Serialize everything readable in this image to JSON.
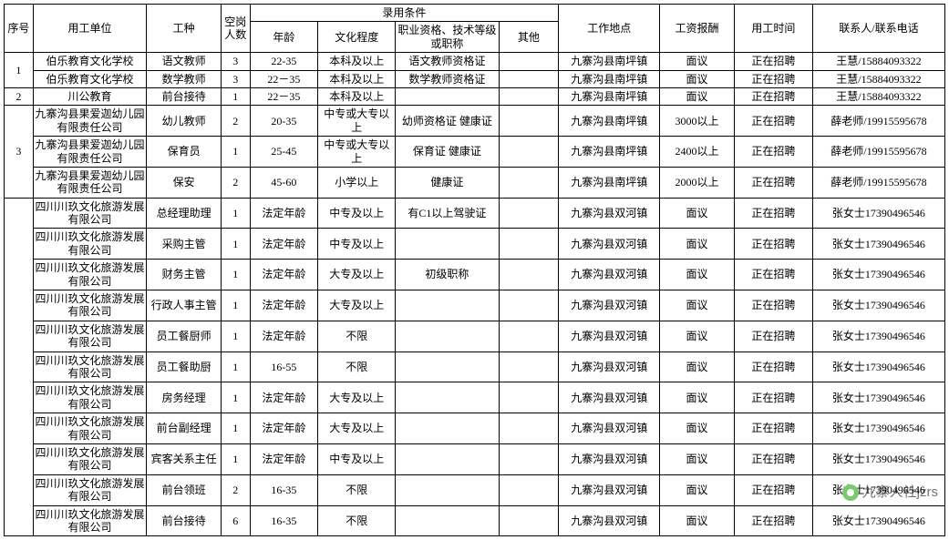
{
  "header": {
    "seq": "序号",
    "unit": "用工单位",
    "job": "工种",
    "vac": "空岗人数",
    "cond": "录用条件",
    "age": "年龄",
    "edu": "文化程度",
    "qual": "职业资格、技术等级或职称",
    "other": "其他",
    "loc": "工作地点",
    "pay": "工资报酬",
    "time": "用工时间",
    "contact": "联系人/联系电话"
  },
  "groups": [
    {
      "seq": "1",
      "rows": [
        {
          "unit": "伯乐教育文化学校",
          "job": "语文教师",
          "vac": "3",
          "age": "22-35",
          "edu": "本科及以上",
          "qual": "语文教师资格证",
          "other": "",
          "loc": "九寨沟县南坪镇",
          "pay": "面议",
          "time": "正在招聘",
          "contact": "王慧/15884093322"
        },
        {
          "unit": "伯乐教育文化学校",
          "job": "数学教师",
          "vac": "3",
          "age": "22－35",
          "edu": "本科及以上",
          "qual": "数学教师资格证",
          "other": "",
          "loc": "九寨沟县南坪镇",
          "pay": "面议",
          "time": "正在招聘",
          "contact": "王慧/15884093322"
        }
      ]
    },
    {
      "seq": "2",
      "rows": [
        {
          "unit": "川公教育",
          "job": "前台接待",
          "vac": "1",
          "age": "22－35",
          "edu": "本科及以上",
          "qual": "",
          "other": "",
          "loc": "九寨沟县南坪镇",
          "pay": "面议",
          "time": "正在招聘",
          "contact": "王慧/15884093322"
        }
      ]
    },
    {
      "seq": "3",
      "rows": [
        {
          "unit": "九寨沟县果爱迦幼儿园有限责任公司",
          "job": "幼儿教师",
          "vac": "2",
          "age": "20-35",
          "edu": "中专或大专以上",
          "qual": "幼师资格证 健康证",
          "other": "",
          "loc": "九寨沟县南坪镇",
          "pay": "3000以上",
          "time": "正在招聘",
          "contact": "薛老师/19915595678"
        },
        {
          "unit": "九寨沟县果爱迦幼儿园有限责任公司",
          "job": "保育员",
          "vac": "1",
          "age": "25-45",
          "edu": "中专或大专以上",
          "qual": "保育证  健康证",
          "other": "",
          "loc": "九寨沟县南坪镇",
          "pay": "2400以上",
          "time": "正在招聘",
          "contact": "薛老师/19915595678"
        },
        {
          "unit": "九寨沟县果爱迦幼儿园有限责任公司",
          "job": "保安",
          "vac": "2",
          "age": "45-60",
          "edu": "小学以上",
          "qual": "健康证",
          "other": "",
          "loc": "九寨沟县南坪镇",
          "pay": "2000以上",
          "time": "正在招聘",
          "contact": "薛老师/19915595678"
        }
      ]
    },
    {
      "seq": "",
      "rows": [
        {
          "unit": "四川川玖文化旅游发展有限公司",
          "job": "总经理助理",
          "vac": "1",
          "age": "法定年龄",
          "edu": "中专及以上",
          "qual": "有C1以上驾驶证",
          "other": "",
          "loc": "九寨沟县双河镇",
          "pay": "面议",
          "time": "正在招聘",
          "contact": "张女士17390496546"
        },
        {
          "unit": "四川川玖文化旅游发展有限公司",
          "job": "采购主管",
          "vac": "1",
          "age": "法定年龄",
          "edu": "中专及以上",
          "qual": "",
          "other": "",
          "loc": "九寨沟县双河镇",
          "pay": "面议",
          "time": "正在招聘",
          "contact": "张女士17390496546"
        },
        {
          "unit": "四川川玖文化旅游发展有限公司",
          "job": "财务主管",
          "vac": "1",
          "age": "法定年龄",
          "edu": "大专及以上",
          "qual": "初级职称",
          "other": "",
          "loc": "九寨沟县双河镇",
          "pay": "面议",
          "time": "正在招聘",
          "contact": "张女士17390496546"
        },
        {
          "unit": "四川川玖文化旅游发展有限公司",
          "job": "行政人事主管",
          "vac": "1",
          "age": "法定年龄",
          "edu": "大专及以上",
          "qual": "",
          "other": "",
          "loc": "九寨沟县双河镇",
          "pay": "面议",
          "time": "正在招聘",
          "contact": "张女士17390496546"
        },
        {
          "unit": "四川川玖文化旅游发展有限公司",
          "job": "员工餐厨师",
          "vac": "1",
          "age": "法定年龄",
          "edu": "不限",
          "qual": "",
          "other": "",
          "loc": "九寨沟县双河镇",
          "pay": "面议",
          "time": "正在招聘",
          "contact": "张女士17390496546"
        },
        {
          "unit": "四川川玖文化旅游发展有限公司",
          "job": "员工餐助厨",
          "vac": "1",
          "age": "16-55",
          "edu": "不限",
          "qual": "",
          "other": "",
          "loc": "九寨沟县双河镇",
          "pay": "面议",
          "time": "正在招聘",
          "contact": "张女士17390496546"
        },
        {
          "unit": "四川川玖文化旅游发展有限公司",
          "job": "房务经理",
          "vac": "1",
          "age": "法定年龄",
          "edu": "大专及以上",
          "qual": "",
          "other": "",
          "loc": "九寨沟县双河镇",
          "pay": "面议",
          "time": "正在招聘",
          "contact": "张女士17390496546"
        },
        {
          "unit": "四川川玖文化旅游发展有限公司",
          "job": "前台副经理",
          "vac": "1",
          "age": "法定年龄",
          "edu": "大专及以上",
          "qual": "",
          "other": "",
          "loc": "九寨沟县双河镇",
          "pay": "面议",
          "time": "正在招聘",
          "contact": "张女士17390496546"
        },
        {
          "unit": "四川川玖文化旅游发展有限公司",
          "job": "宾客关系主任",
          "vac": "1",
          "age": "法定年龄",
          "edu": "中专及以上",
          "qual": "",
          "other": "",
          "loc": "九寨沟县双河镇",
          "pay": "面议",
          "time": "正在招聘",
          "contact": "张女士17390496546"
        },
        {
          "unit": "四川川玖文化旅游发展有限公司",
          "job": "前台领班",
          "vac": "2",
          "age": "16-35",
          "edu": "不限",
          "qual": "",
          "other": "",
          "loc": "九寨沟县双河镇",
          "pay": "面议",
          "time": "正在招聘",
          "contact": "张女士17390496546"
        },
        {
          "unit": "四川川玖文化旅游发展有限公司",
          "job": "前台接待",
          "vac": "6",
          "age": "16-35",
          "edu": "不限",
          "qual": "",
          "other": "",
          "loc": "九寨沟县双河镇",
          "pay": "面议",
          "time": "正在招聘",
          "contact": "张女士17390496546"
        }
      ]
    }
  ],
  "watermark": "九寨人社jzrs"
}
